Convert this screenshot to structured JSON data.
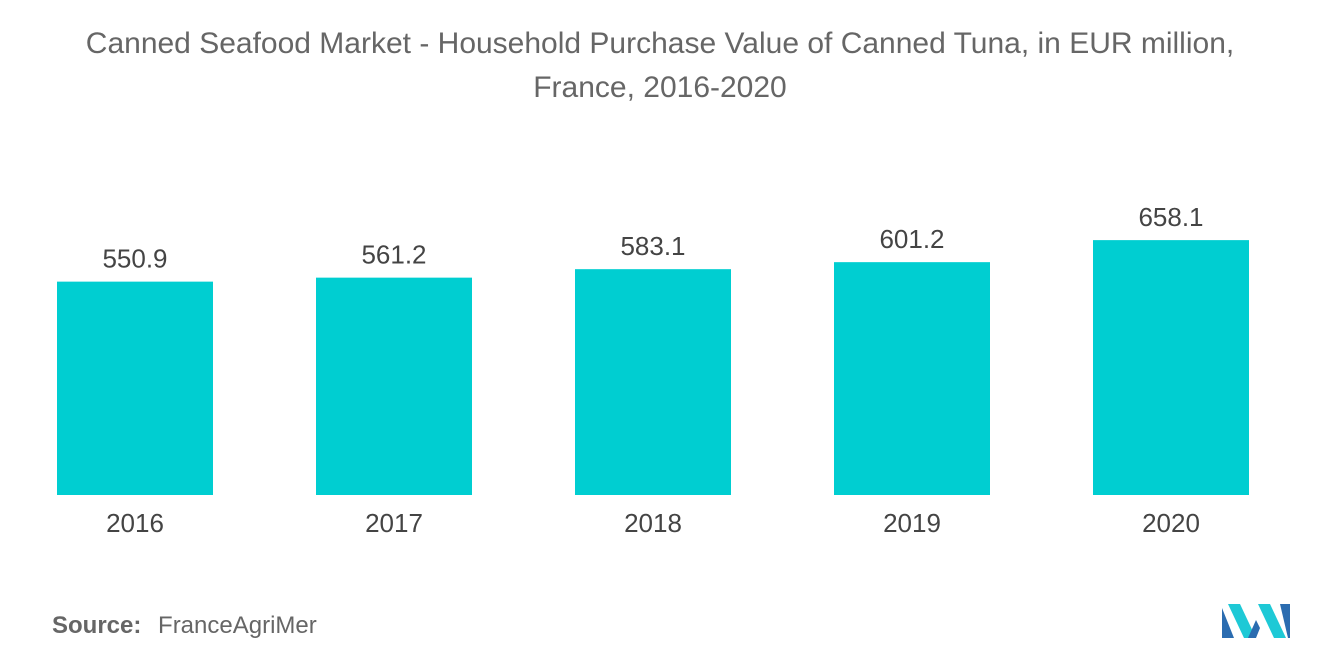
{
  "title_line1": "Canned Seafood Market - Household Purchase Value of Canned Tuna, in EUR million,",
  "title_line2": "France, 2016-2020",
  "source_label": "Source:",
  "source_value": "FranceAgriMer",
  "colors": {
    "bar": "#00CED1",
    "logo_dark": "#2B6CB0",
    "logo_light": "#1EC9D6"
  },
  "logo_icon": "mordor-intelligence-logo",
  "chart_data": {
    "type": "bar",
    "categories": [
      "2016",
      "2017",
      "2018",
      "2019",
      "2020"
    ],
    "values": [
      550.9,
      561.2,
      583.1,
      601.2,
      658.1
    ],
    "value_labels": [
      "550.9",
      "561.2",
      "583.1",
      "601.2",
      "658.1"
    ],
    "title": "Canned Seafood Market - Household Purchase Value of Canned Tuna, in EUR million, France, 2016-2020",
    "xlabel": "",
    "ylabel": "",
    "grid": false,
    "legend": "none"
  }
}
